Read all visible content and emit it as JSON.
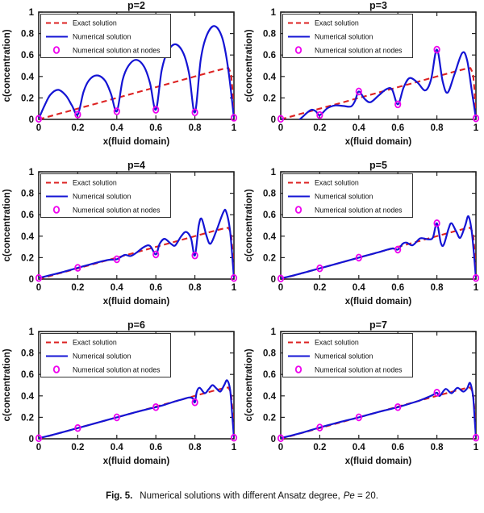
{
  "caption": {
    "label": "Fig. 5.",
    "body": "Numerical solutions with different Ansatz degree,",
    "pe": "Pe",
    "tail": " = 20."
  },
  "chart_data": {
    "type": "line",
    "layout": "2x3-grid",
    "shared": {
      "xlabel": "x(fluid domain)",
      "ylabel": "c(concentration)",
      "xlim": [
        0,
        1
      ],
      "ylim": [
        0,
        1
      ],
      "xticks": [
        0,
        0.2,
        0.4,
        0.6,
        0.8,
        1
      ],
      "xtick_labels": [
        "0",
        "0.2",
        "0.4",
        "0.6",
        "0.8",
        "1"
      ],
      "yticks": [
        0,
        0.2,
        0.4,
        0.6,
        0.8,
        1
      ],
      "ytick_labels": [
        "0",
        "0.2",
        "0.4",
        "0.6",
        "0.8",
        "1"
      ],
      "grid": false,
      "legend_position": "top-left",
      "legend": [
        "Exact solution",
        "Numerical solution",
        "Numerical solution at nodes"
      ],
      "colors": {
        "exact": "#dd2222",
        "numerical": "#1414d4",
        "nodes": "#ee00ee",
        "axis": "#222222",
        "text": "#111111"
      },
      "exact": [
        [
          0,
          0
        ],
        [
          0.1,
          0.05
        ],
        [
          0.2,
          0.1
        ],
        [
          0.3,
          0.15
        ],
        [
          0.4,
          0.2
        ],
        [
          0.5,
          0.25
        ],
        [
          0.6,
          0.3
        ],
        [
          0.7,
          0.35
        ],
        [
          0.8,
          0.4
        ],
        [
          0.9,
          0.45
        ],
        [
          0.95,
          0.473
        ],
        [
          0.972,
          0.478
        ],
        [
          0.985,
          0.43
        ],
        [
          0.993,
          0.27
        ],
        [
          1,
          0.02
        ]
      ]
    },
    "subplots": [
      {
        "title": "p=2",
        "nodes": [
          [
            0,
            0.005
          ],
          [
            0.2,
            0.045
          ],
          [
            0.4,
            0.075
          ],
          [
            0.6,
            0.09
          ],
          [
            0.8,
            0.065
          ],
          [
            1,
            0.015
          ]
        ],
        "numerical": [
          [
            0,
            0.005
          ],
          [
            0.03,
            0.13
          ],
          [
            0.06,
            0.23
          ],
          [
            0.1,
            0.275
          ],
          [
            0.14,
            0.22
          ],
          [
            0.17,
            0.13
          ],
          [
            0.2,
            0.045
          ],
          [
            0.23,
            0.26
          ],
          [
            0.26,
            0.37
          ],
          [
            0.3,
            0.41
          ],
          [
            0.34,
            0.36
          ],
          [
            0.37,
            0.24
          ],
          [
            0.4,
            0.075
          ],
          [
            0.43,
            0.37
          ],
          [
            0.46,
            0.5
          ],
          [
            0.5,
            0.555
          ],
          [
            0.54,
            0.49
          ],
          [
            0.57,
            0.34
          ],
          [
            0.6,
            0.09
          ],
          [
            0.63,
            0.46
          ],
          [
            0.66,
            0.63
          ],
          [
            0.7,
            0.7
          ],
          [
            0.74,
            0.62
          ],
          [
            0.77,
            0.43
          ],
          [
            0.8,
            0.065
          ],
          [
            0.83,
            0.56
          ],
          [
            0.86,
            0.78
          ],
          [
            0.9,
            0.87
          ],
          [
            0.94,
            0.76
          ],
          [
            0.97,
            0.48
          ],
          [
            1,
            0.015
          ]
        ]
      },
      {
        "title": "p=3",
        "nodes": [
          [
            0,
            0.005
          ],
          [
            0.2,
            0.04
          ],
          [
            0.4,
            0.26
          ],
          [
            0.6,
            0.14
          ],
          [
            0.8,
            0.65
          ],
          [
            1,
            0.01
          ]
        ],
        "numerical": [
          [
            0,
            0.005
          ],
          [
            0.04,
            -0.015
          ],
          [
            0.08,
            -0.02
          ],
          [
            0.11,
            0.02
          ],
          [
            0.14,
            0.07
          ],
          [
            0.16,
            0.09
          ],
          [
            0.18,
            0.075
          ],
          [
            0.2,
            0.04
          ],
          [
            0.24,
            0.105
          ],
          [
            0.28,
            0.13
          ],
          [
            0.32,
            0.125
          ],
          [
            0.36,
            0.12
          ],
          [
            0.38,
            0.17
          ],
          [
            0.4,
            0.26
          ],
          [
            0.43,
            0.19
          ],
          [
            0.46,
            0.16
          ],
          [
            0.5,
            0.22
          ],
          [
            0.54,
            0.28
          ],
          [
            0.57,
            0.28
          ],
          [
            0.6,
            0.14
          ],
          [
            0.63,
            0.3
          ],
          [
            0.66,
            0.385
          ],
          [
            0.7,
            0.345
          ],
          [
            0.74,
            0.27
          ],
          [
            0.77,
            0.37
          ],
          [
            0.8,
            0.65
          ],
          [
            0.83,
            0.35
          ],
          [
            0.855,
            0.25
          ],
          [
            0.89,
            0.42
          ],
          [
            0.93,
            0.62
          ],
          [
            0.955,
            0.55
          ],
          [
            0.98,
            0.25
          ],
          [
            1,
            0.01
          ]
        ]
      },
      {
        "title": "p=4",
        "nodes": [
          [
            0,
            0.01
          ],
          [
            0.2,
            0.105
          ],
          [
            0.4,
            0.185
          ],
          [
            0.6,
            0.23
          ],
          [
            0.8,
            0.22
          ],
          [
            1,
            0.01
          ]
        ],
        "numerical": [
          [
            0,
            0.01
          ],
          [
            0.1,
            0.055
          ],
          [
            0.2,
            0.105
          ],
          [
            0.3,
            0.155
          ],
          [
            0.36,
            0.18
          ],
          [
            0.4,
            0.185
          ],
          [
            0.44,
            0.225
          ],
          [
            0.47,
            0.215
          ],
          [
            0.5,
            0.245
          ],
          [
            0.54,
            0.3
          ],
          [
            0.57,
            0.31
          ],
          [
            0.6,
            0.23
          ],
          [
            0.62,
            0.33
          ],
          [
            0.645,
            0.375
          ],
          [
            0.68,
            0.325
          ],
          [
            0.7,
            0.315
          ],
          [
            0.73,
            0.4
          ],
          [
            0.755,
            0.44
          ],
          [
            0.78,
            0.38
          ],
          [
            0.8,
            0.22
          ],
          [
            0.82,
            0.5
          ],
          [
            0.835,
            0.56
          ],
          [
            0.86,
            0.4
          ],
          [
            0.88,
            0.33
          ],
          [
            0.91,
            0.45
          ],
          [
            0.945,
            0.62
          ],
          [
            0.96,
            0.63
          ],
          [
            0.98,
            0.45
          ],
          [
            1,
            0.01
          ]
        ]
      },
      {
        "title": "p=5",
        "nodes": [
          [
            0,
            0.005
          ],
          [
            0.2,
            0.1
          ],
          [
            0.4,
            0.2
          ],
          [
            0.6,
            0.275
          ],
          [
            0.8,
            0.52
          ],
          [
            1,
            0.01
          ]
        ],
        "numerical": [
          [
            0,
            0.005
          ],
          [
            0.1,
            0.05
          ],
          [
            0.2,
            0.1
          ],
          [
            0.3,
            0.15
          ],
          [
            0.4,
            0.2
          ],
          [
            0.5,
            0.25
          ],
          [
            0.57,
            0.285
          ],
          [
            0.6,
            0.275
          ],
          [
            0.625,
            0.33
          ],
          [
            0.645,
            0.34
          ],
          [
            0.675,
            0.315
          ],
          [
            0.71,
            0.375
          ],
          [
            0.73,
            0.38
          ],
          [
            0.76,
            0.37
          ],
          [
            0.78,
            0.39
          ],
          [
            0.8,
            0.52
          ],
          [
            0.82,
            0.34
          ],
          [
            0.835,
            0.32
          ],
          [
            0.86,
            0.47
          ],
          [
            0.875,
            0.52
          ],
          [
            0.9,
            0.44
          ],
          [
            0.92,
            0.385
          ],
          [
            0.945,
            0.5
          ],
          [
            0.962,
            0.585
          ],
          [
            0.98,
            0.42
          ],
          [
            1,
            0.01
          ]
        ]
      },
      {
        "title": "p=6",
        "nodes": [
          [
            0,
            0.005
          ],
          [
            0.2,
            0.1
          ],
          [
            0.4,
            0.2
          ],
          [
            0.6,
            0.295
          ],
          [
            0.8,
            0.34
          ],
          [
            1,
            0.01
          ]
        ],
        "numerical": [
          [
            0,
            0.005
          ],
          [
            0.1,
            0.05
          ],
          [
            0.2,
            0.1
          ],
          [
            0.3,
            0.15
          ],
          [
            0.4,
            0.2
          ],
          [
            0.5,
            0.25
          ],
          [
            0.6,
            0.295
          ],
          [
            0.65,
            0.32
          ],
          [
            0.7,
            0.35
          ],
          [
            0.74,
            0.37
          ],
          [
            0.77,
            0.385
          ],
          [
            0.79,
            0.375
          ],
          [
            0.8,
            0.34
          ],
          [
            0.81,
            0.44
          ],
          [
            0.825,
            0.475
          ],
          [
            0.85,
            0.425
          ],
          [
            0.87,
            0.46
          ],
          [
            0.89,
            0.5
          ],
          [
            0.91,
            0.47
          ],
          [
            0.93,
            0.44
          ],
          [
            0.95,
            0.5
          ],
          [
            0.965,
            0.545
          ],
          [
            0.98,
            0.46
          ],
          [
            0.99,
            0.25
          ],
          [
            1,
            0.01
          ]
        ]
      },
      {
        "title": "p=7",
        "nodes": [
          [
            0,
            0.005
          ],
          [
            0.2,
            0.105
          ],
          [
            0.4,
            0.2
          ],
          [
            0.6,
            0.295
          ],
          [
            0.8,
            0.43
          ],
          [
            1,
            0.01
          ]
        ],
        "numerical": [
          [
            0,
            0.005
          ],
          [
            0.1,
            0.052
          ],
          [
            0.2,
            0.105
          ],
          [
            0.3,
            0.155
          ],
          [
            0.4,
            0.2
          ],
          [
            0.5,
            0.25
          ],
          [
            0.6,
            0.295
          ],
          [
            0.7,
            0.35
          ],
          [
            0.75,
            0.385
          ],
          [
            0.78,
            0.41
          ],
          [
            0.8,
            0.43
          ],
          [
            0.815,
            0.4
          ],
          [
            0.845,
            0.465
          ],
          [
            0.875,
            0.425
          ],
          [
            0.905,
            0.475
          ],
          [
            0.935,
            0.44
          ],
          [
            0.955,
            0.47
          ],
          [
            0.97,
            0.52
          ],
          [
            0.985,
            0.4
          ],
          [
            0.993,
            0.2
          ],
          [
            1,
            0.01
          ]
        ]
      }
    ]
  }
}
